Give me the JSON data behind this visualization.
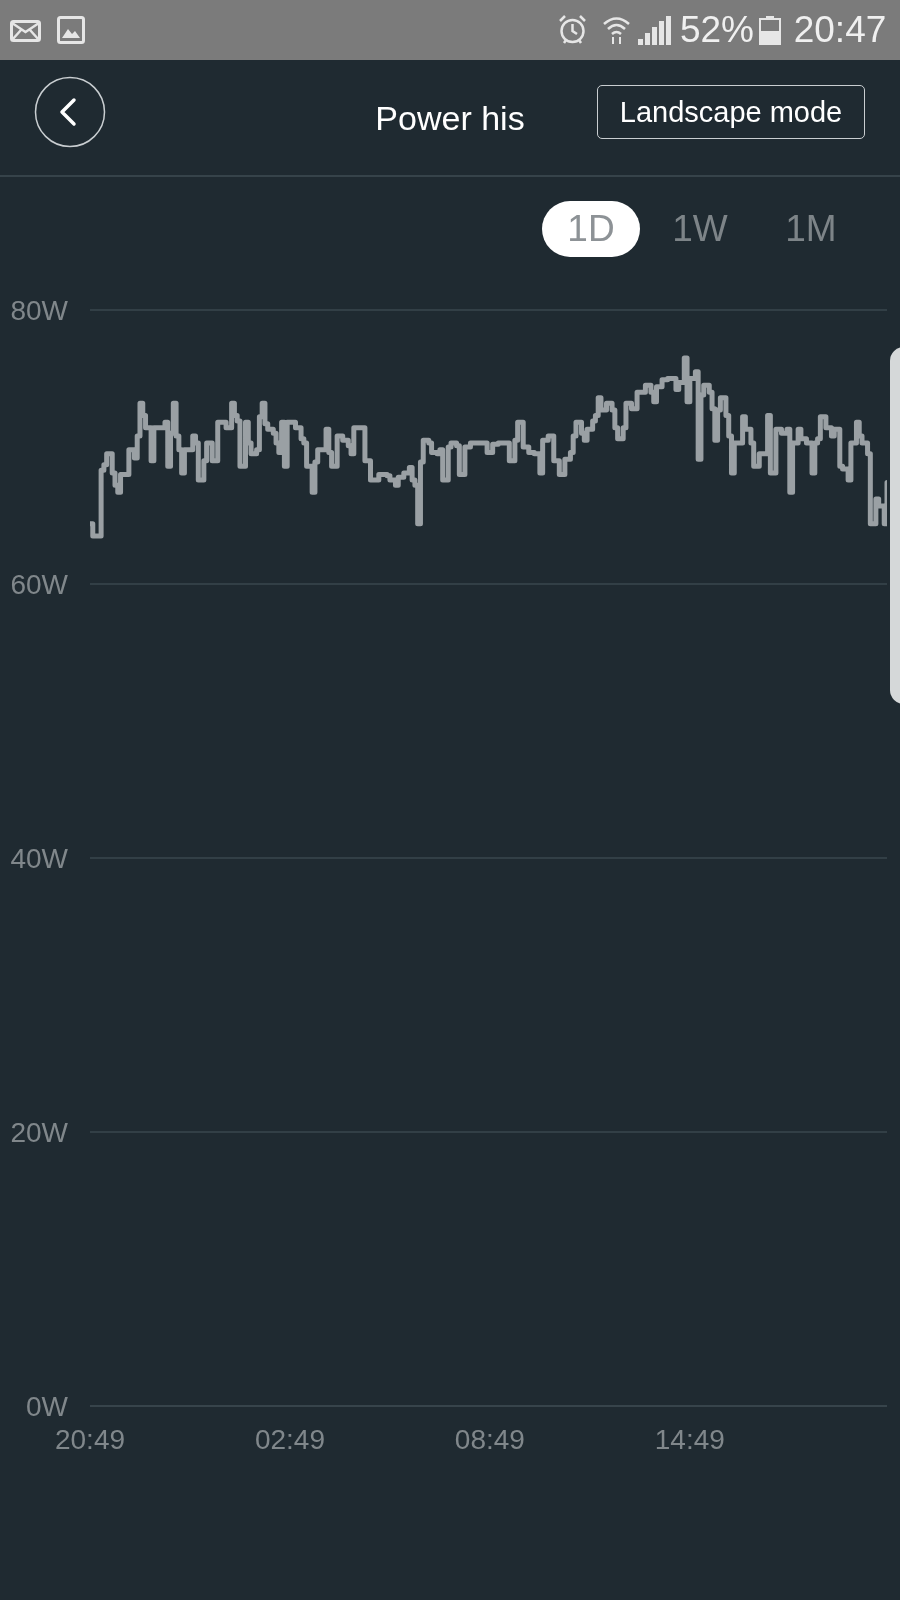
{
  "chart_data": {
    "type": "step",
    "title": "Power his",
    "annotations": [
      "Landscape mode",
      "1D",
      "1W",
      "1M",
      "52%",
      "20:47"
    ],
    "color": "#9aa0a4",
    "categories": [
      "20:49",
      null,
      null,
      null,
      null,
      null,
      null,
      null,
      null,
      null,
      null,
      null,
      null,
      null,
      null,
      null,
      null,
      null,
      null,
      null,
      null,
      null,
      null,
      null,
      null,
      null,
      null,
      null,
      null,
      null,
      null,
      null,
      null,
      null,
      null,
      null,
      null,
      null,
      null,
      null,
      null,
      null,
      null,
      null,
      null,
      null,
      null,
      null,
      null,
      null,
      null,
      null,
      null,
      null,
      null,
      null,
      null,
      null,
      null,
      null,
      null,
      null,
      null,
      null,
      null,
      null,
      null,
      null,
      null,
      null,
      null,
      null,
      "02:49",
      null,
      null,
      null,
      null,
      null,
      null,
      null,
      null,
      null,
      null,
      null,
      null,
      null,
      null,
      null,
      null,
      null,
      null,
      null,
      null,
      null,
      null,
      null,
      null,
      null,
      null,
      null,
      null,
      null,
      null,
      null,
      null,
      null,
      null,
      null,
      null,
      null,
      null,
      null,
      null,
      null,
      null,
      null,
      null,
      null,
      null,
      null,
      null,
      null,
      null,
      null,
      null,
      null,
      null,
      null,
      null,
      null,
      null,
      null,
      null,
      null,
      null,
      null,
      null,
      null,
      null,
      null,
      null,
      null,
      null,
      null,
      "08:49",
      null,
      null,
      null,
      null,
      null,
      null,
      null,
      null,
      null,
      null,
      null,
      null,
      null,
      null,
      null,
      null,
      null,
      null,
      null,
      null,
      null,
      null,
      null,
      null,
      null,
      null,
      null,
      null,
      null,
      null,
      null,
      null,
      null,
      null,
      null,
      null,
      null,
      null,
      null,
      null,
      null,
      null,
      null,
      null,
      null,
      null,
      null,
      null,
      null,
      null,
      null,
      null,
      null,
      null,
      null,
      null,
      null,
      null,
      null,
      null,
      null,
      null,
      null,
      null,
      null,
      null,
      null,
      null,
      null,
      null,
      null,
      "14:49",
      null,
      null,
      null,
      null,
      null,
      null,
      null,
      null,
      null,
      null,
      null,
      null,
      null,
      null,
      null,
      null,
      null,
      null,
      null,
      null,
      null,
      null,
      null,
      null,
      null,
      null,
      null,
      null,
      null,
      null,
      null,
      null,
      null,
      null,
      null,
      null,
      null,
      null,
      null,
      null,
      null,
      null,
      null,
      null,
      null,
      null,
      null,
      null,
      null,
      null,
      null,
      null,
      null,
      null,
      null,
      null,
      null,
      null,
      null,
      null,
      null,
      null,
      null,
      null,
      null,
      null,
      null,
      null,
      null,
      null,
      null
    ],
    "values": [
      64.4,
      63.5,
      63.5,
      63.5,
      68.3,
      68.7,
      69.5,
      69.5,
      68.1,
      67.2,
      66.7,
      68.0,
      68.0,
      68.0,
      69.8,
      69.8,
      69.2,
      70.8,
      73.2,
      72.3,
      71.4,
      71.4,
      69.0,
      71.4,
      71.4,
      71.4,
      71.4,
      71.8,
      68.6,
      71.0,
      73.2,
      70.8,
      69.8,
      68.1,
      69.8,
      69.8,
      69.8,
      70.8,
      70.3,
      67.6,
      67.6,
      69.0,
      70.3,
      70.3,
      69.0,
      69.0,
      71.8,
      71.8,
      71.8,
      71.4,
      71.4,
      73.2,
      72.3,
      71.9,
      68.6,
      68.6,
      71.8,
      70.3,
      69.5,
      69.5,
      69.8,
      72.2,
      73.2,
      71.7,
      71.3,
      71.3,
      71.0,
      70.3,
      69.6,
      71.8,
      68.6,
      71.8,
      71.8,
      71.8,
      71.4,
      71.4,
      70.6,
      70.3,
      68.6,
      68.6,
      66.7,
      68.9,
      69.8,
      69.8,
      69.8,
      71.3,
      69.6,
      68.6,
      68.6,
      70.8,
      70.8,
      70.5,
      70.5,
      70.1,
      69.5,
      71.4,
      71.4,
      71.4,
      71.4,
      69.0,
      69.0,
      67.6,
      67.6,
      67.6,
      68.0,
      68.0,
      68.0,
      67.9,
      67.6,
      67.6,
      67.2,
      67.8,
      67.8,
      68.1,
      68.1,
      68.5,
      67.6,
      67.2,
      64.4,
      68.9,
      70.5,
      70.5,
      70.3,
      69.6,
      69.6,
      69.5,
      69.8,
      67.6,
      67.6,
      70.0,
      70.3,
      70.3,
      70.1,
      68.0,
      68.0,
      70.0,
      70.0,
      70.3,
      70.3,
      70.3,
      70.3,
      70.3,
      70.3,
      69.6,
      69.6,
      70.2,
      70.2,
      70.3,
      70.3,
      70.3,
      70.3,
      69.0,
      69.0,
      70.5,
      71.8,
      71.8,
      70.0,
      70.0,
      69.6,
      69.6,
      69.5,
      69.5,
      68.1,
      70.5,
      70.5,
      70.8,
      70.8,
      69.0,
      69.0,
      68.0,
      68.0,
      69.1,
      69.1,
      69.6,
      70.8,
      71.8,
      71.8,
      71.0,
      70.5,
      71.3,
      71.3,
      71.9,
      72.3,
      73.6,
      72.7,
      72.7,
      73.2,
      73.2,
      72.7,
      71.4,
      70.6,
      70.6,
      71.4,
      73.2,
      73.2,
      72.8,
      72.8,
      74.0,
      74.0,
      74.0,
      74.5,
      74.5,
      74.0,
      73.3,
      74.4,
      74.4,
      74.9,
      74.9,
      75.0,
      75.0,
      75.0,
      74.2,
      74.7,
      74.7,
      76.5,
      73.3,
      75.0,
      75.0,
      75.5,
      69.1,
      73.8,
      74.5,
      74.5,
      74.0,
      72.8,
      70.5,
      72.7,
      73.6,
      73.6,
      72.3,
      70.8,
      68.1,
      70.3,
      70.3,
      70.3,
      72.2,
      71.3,
      71.3,
      70.3,
      68.6,
      68.6,
      69.5,
      69.5,
      69.5,
      72.3,
      68.1,
      68.1,
      71.3,
      71.3,
      71.0,
      71.0,
      71.3,
      66.7,
      70.3,
      70.3,
      71.3,
      70.6,
      70.6,
      70.3,
      70.3,
      68.1,
      70.3,
      70.6,
      72.2,
      72.2,
      71.4,
      71.4,
      70.8,
      71.3,
      71.3,
      68.6,
      68.4,
      68.4,
      67.6,
      70.3,
      70.3,
      71.8,
      70.8,
      70.3,
      70.3,
      69.5,
      64.4,
      64.4,
      66.2,
      65.7,
      65.7,
      64.4,
      67.4
    ],
    "ylim": [
      0,
      80
    ],
    "yticks": [
      {
        "value": 0,
        "label": "0W"
      },
      {
        "value": 20,
        "label": "20W"
      },
      {
        "value": 40,
        "label": "40W"
      },
      {
        "value": 60,
        "label": "60W"
      },
      {
        "value": 80,
        "label": "80W"
      }
    ],
    "grid": "y"
  }
}
